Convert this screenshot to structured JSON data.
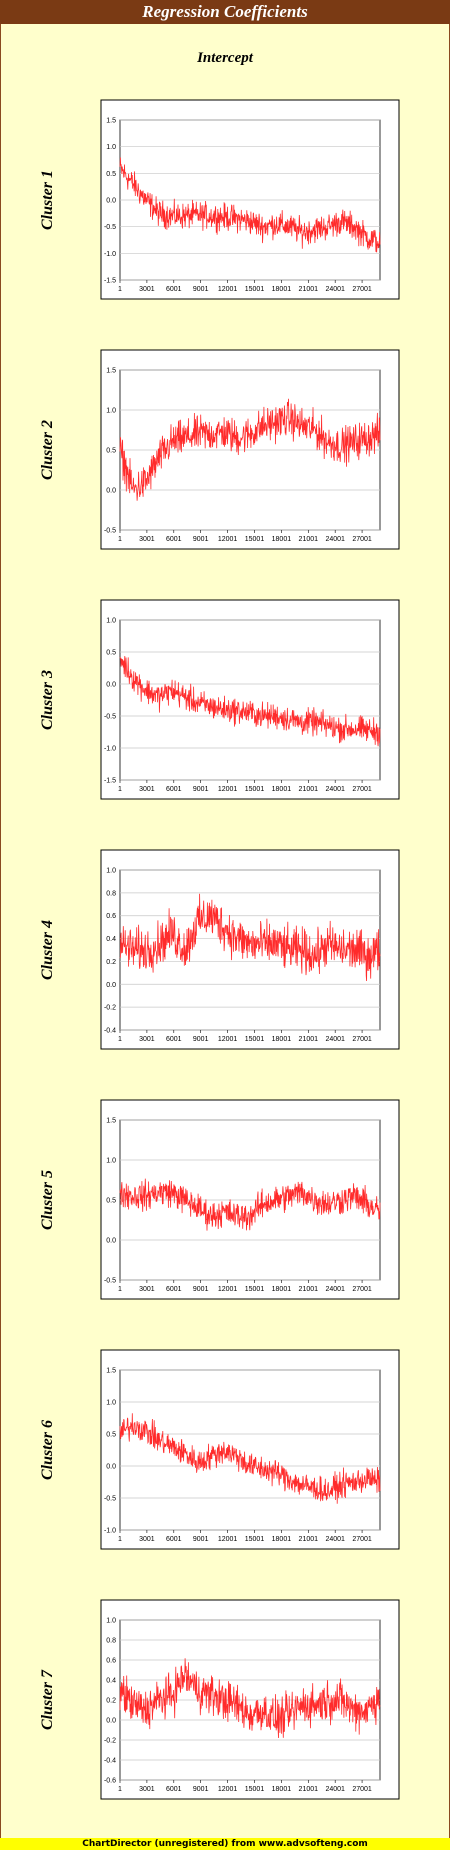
{
  "header": {
    "title": "Regression Coefficients",
    "subtitle": "Intercept"
  },
  "footer": {
    "text": "ChartDirector (unregistered) from www.advsofteng.com"
  },
  "colors": {
    "line": "#ff2b2b",
    "background": "#ffffcc",
    "title_bar": "#7a3a14",
    "footer_bar": "#ffff00"
  },
  "chart_data": [
    {
      "type": "line",
      "label": "Cluster 1",
      "x_ticks": [
        "1",
        "3001",
        "6001",
        "9001",
        "12001",
        "15001",
        "18001",
        "21001",
        "24001",
        "27001"
      ],
      "yticks": [
        "1.5",
        "1.0",
        "0.5",
        "0.0",
        "-0.5",
        "-1.0",
        "-1.5"
      ],
      "ylim": [
        -1.5,
        1.5
      ],
      "grid": true,
      "series": [
        {
          "values": [
            0.6,
            0.3,
            0.0,
            -0.25,
            -0.3,
            -0.3,
            -0.28,
            -0.3,
            -0.32,
            -0.35,
            -0.4,
            -0.5,
            -0.45,
            -0.5,
            -0.6,
            -0.55,
            -0.5,
            -0.4,
            -0.5,
            -0.7,
            -0.8
          ],
          "noise": 0.22
        }
      ]
    },
    {
      "type": "line",
      "label": "Cluster 2",
      "x_ticks": [
        "1",
        "3001",
        "6001",
        "9001",
        "12001",
        "15001",
        "18001",
        "21001",
        "24001",
        "27001"
      ],
      "yticks": [
        "1.5",
        "1.0",
        "0.5",
        "0.0",
        "-0.5"
      ],
      "ylim": [
        -0.5,
        1.5
      ],
      "grid": true,
      "series": [
        {
          "values": [
            0.5,
            0.0,
            0.1,
            0.4,
            0.6,
            0.65,
            0.7,
            0.7,
            0.72,
            0.65,
            0.7,
            0.8,
            0.85,
            0.9,
            0.8,
            0.75,
            0.6,
            0.55,
            0.6,
            0.65,
            0.7
          ],
          "noise": 0.2
        }
      ]
    },
    {
      "type": "line",
      "label": "Cluster 3",
      "x_ticks": [
        "1",
        "3001",
        "6001",
        "9001",
        "12001",
        "15001",
        "18001",
        "21001",
        "24001",
        "27001"
      ],
      "yticks": [
        "1.0",
        "0.5",
        "0.0",
        "-0.5",
        "-1.0",
        "-1.5"
      ],
      "ylim": [
        -1.5,
        1.0
      ],
      "grid": true,
      "series": [
        {
          "values": [
            0.4,
            0.1,
            -0.1,
            -0.2,
            -0.1,
            -0.2,
            -0.3,
            -0.35,
            -0.4,
            -0.42,
            -0.45,
            -0.5,
            -0.5,
            -0.55,
            -0.6,
            -0.6,
            -0.65,
            -0.7,
            -0.7,
            -0.72,
            -0.75
          ],
          "noise": 0.18
        }
      ]
    },
    {
      "type": "line",
      "label": "Cluster 4",
      "x_ticks": [
        "1",
        "3001",
        "6001",
        "9001",
        "12001",
        "15001",
        "18001",
        "21001",
        "24001",
        "27001"
      ],
      "yticks": [
        "1.0",
        "0.8",
        "0.6",
        "0.4",
        "0.2",
        "0.0",
        "-0.2",
        "-0.4"
      ],
      "ylim": [
        -0.4,
        1.0
      ],
      "grid": true,
      "series": [
        {
          "values": [
            0.35,
            0.3,
            0.3,
            0.35,
            0.45,
            0.3,
            0.55,
            0.6,
            0.5,
            0.4,
            0.35,
            0.35,
            0.35,
            0.3,
            0.3,
            0.25,
            0.35,
            0.3,
            0.3,
            0.25,
            0.3
          ],
          "noise": 0.17
        }
      ]
    },
    {
      "type": "line",
      "label": "Cluster 5",
      "x_ticks": [
        "1",
        "3001",
        "6001",
        "9001",
        "12001",
        "15001",
        "18001",
        "21001",
        "24001",
        "27001"
      ],
      "yticks": [
        "1.5",
        "1.0",
        "0.5",
        "0.0",
        "-0.5"
      ],
      "ylim": [
        -0.5,
        1.5
      ],
      "grid": true,
      "series": [
        {
          "values": [
            0.6,
            0.55,
            0.55,
            0.6,
            0.6,
            0.5,
            0.4,
            0.3,
            0.35,
            0.3,
            0.3,
            0.45,
            0.5,
            0.55,
            0.6,
            0.5,
            0.45,
            0.5,
            0.55,
            0.45,
            0.35
          ],
          "noise": 0.16
        }
      ]
    },
    {
      "type": "line",
      "label": "Cluster 6",
      "x_ticks": [
        "1",
        "3001",
        "6001",
        "9001",
        "12001",
        "15001",
        "18001",
        "21001",
        "24001",
        "27001"
      ],
      "yticks": [
        "1.5",
        "1.0",
        "0.5",
        "0.0",
        "-0.5",
        "-1.0"
      ],
      "ylim": [
        -1.0,
        1.5
      ],
      "grid": true,
      "series": [
        {
          "values": [
            0.5,
            0.65,
            0.55,
            0.4,
            0.3,
            0.2,
            0.05,
            0.15,
            0.25,
            0.15,
            0.0,
            -0.05,
            -0.1,
            -0.2,
            -0.3,
            -0.35,
            -0.4,
            -0.3,
            -0.25,
            -0.2,
            -0.25
          ],
          "noise": 0.18
        }
      ]
    },
    {
      "type": "line",
      "label": "Cluster 7",
      "x_ticks": [
        "1",
        "3001",
        "6001",
        "9001",
        "12001",
        "15001",
        "18001",
        "21001",
        "24001",
        "27001"
      ],
      "yticks": [
        "1.0",
        "0.8",
        "0.6",
        "0.4",
        "0.2",
        "0.0",
        "-0.2",
        "-0.4",
        "-0.6"
      ],
      "ylim": [
        -0.6,
        1.0
      ],
      "grid": true,
      "series": [
        {
          "values": [
            0.3,
            0.15,
            0.1,
            0.2,
            0.25,
            0.45,
            0.3,
            0.25,
            0.2,
            0.15,
            0.05,
            0.1,
            0.0,
            0.05,
            0.15,
            0.15,
            0.2,
            0.2,
            0.1,
            0.1,
            0.25
          ],
          "noise": 0.18
        }
      ]
    }
  ]
}
